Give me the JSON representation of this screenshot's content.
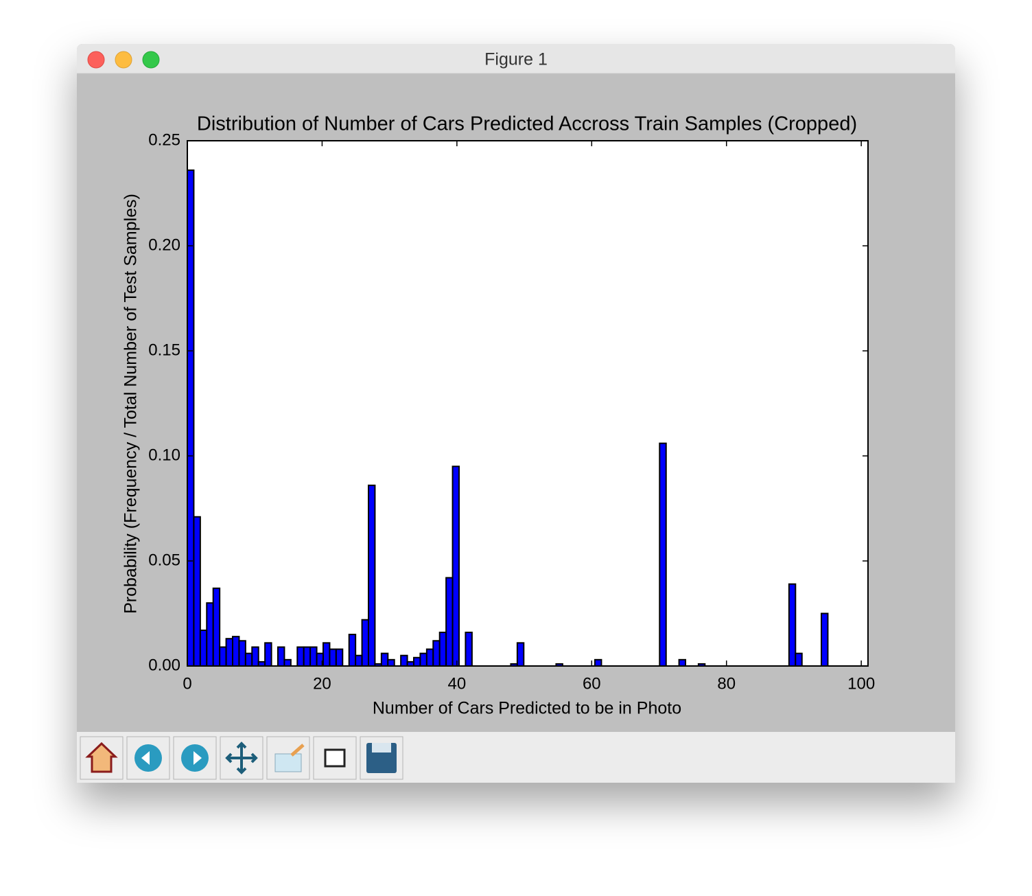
{
  "window": {
    "title": "Figure 1"
  },
  "chart_data": {
    "type": "histogram",
    "title": "Distribution of Number of Cars Predicted Accross Train Samples (Cropped)",
    "x_label": "Number of Cars Predicted to be in Photo",
    "y_label": "Probability (Frequency / Total Number of Test Samples)",
    "bins": [
      0,
      0.96,
      1.92,
      2.88,
      3.84,
      4.8,
      5.76,
      6.72,
      7.68,
      8.64,
      9.6,
      10.56,
      11.52,
      12.48,
      13.44,
      14.4,
      15.36,
      16.32,
      17.28,
      18.24,
      19.2,
      20.16,
      21.12,
      22.08,
      23.04,
      24,
      24.96,
      25.92,
      26.88,
      27.84,
      28.8,
      29.76,
      30.72,
      31.68,
      32.64,
      33.6,
      34.56,
      35.52,
      36.48,
      37.44,
      38.4,
      39.36,
      40.32,
      41.28,
      42.24,
      43.2,
      44.16,
      45.12,
      46.08,
      47.04,
      48,
      48.96,
      49.92,
      50.88,
      51.84,
      52.8,
      53.76,
      54.72,
      55.68,
      56.64,
      57.6,
      58.56,
      59.52,
      60.48,
      61.44,
      62.4,
      63.36,
      64.32,
      65.28,
      66.24,
      67.2,
      68.16,
      69.12,
      70.08,
      71.04,
      72,
      72.96,
      73.92,
      74.88,
      75.84,
      76.8,
      77.76,
      78.72,
      79.68,
      80.64,
      81.6,
      82.56,
      83.52,
      84.48,
      85.44,
      86.4,
      87.36,
      88.32,
      89.28,
      90.24,
      91.2,
      92.16,
      93.12,
      94.08,
      95.04,
      96
    ],
    "values": [
      0.236,
      0.071,
      0.017,
      0.03,
      0.037,
      0.009,
      0.013,
      0.014,
      0.012,
      0.006,
      0.009,
      0.002,
      0.011,
      0,
      0.009,
      0.003,
      0,
      0.009,
      0.009,
      0.009,
      0.006,
      0.011,
      0.008,
      0.008,
      0,
      0.015,
      0.005,
      0.022,
      0.086,
      0.001,
      0.006,
      0.003,
      0,
      0.005,
      0.002,
      0.004,
      0.006,
      0.008,
      0.012,
      0.016,
      0.042,
      0.095,
      0,
      0.016,
      0,
      0,
      0,
      0,
      0,
      0,
      0.001,
      0.011,
      0,
      0,
      0,
      0,
      0,
      0.001,
      0,
      0,
      0,
      0,
      0,
      0.003,
      0,
      0,
      0,
      0,
      0,
      0,
      0,
      0,
      0,
      0.106,
      0,
      0,
      0.003,
      0,
      0,
      0.001,
      0,
      0,
      0,
      0,
      0,
      0,
      0,
      0,
      0,
      0,
      0,
      0,
      0,
      0.039,
      0.006,
      0,
      0,
      0,
      0.025,
      0
    ],
    "color": "#0000ff",
    "xlim": [
      0,
      101
    ],
    "xticks": [
      0,
      20,
      40,
      60,
      80,
      100
    ],
    "ylim": [
      0,
      0.25
    ],
    "yticks": [
      {
        "value": 0,
        "label": "0.00"
      },
      {
        "value": 0.05,
        "label": "0.05"
      },
      {
        "value": 0.1,
        "label": "0.10"
      },
      {
        "value": 0.15,
        "label": "0.15"
      },
      {
        "value": 0.2,
        "label": "0.20"
      },
      {
        "value": 0.25,
        "label": "0.25"
      }
    ]
  }
}
